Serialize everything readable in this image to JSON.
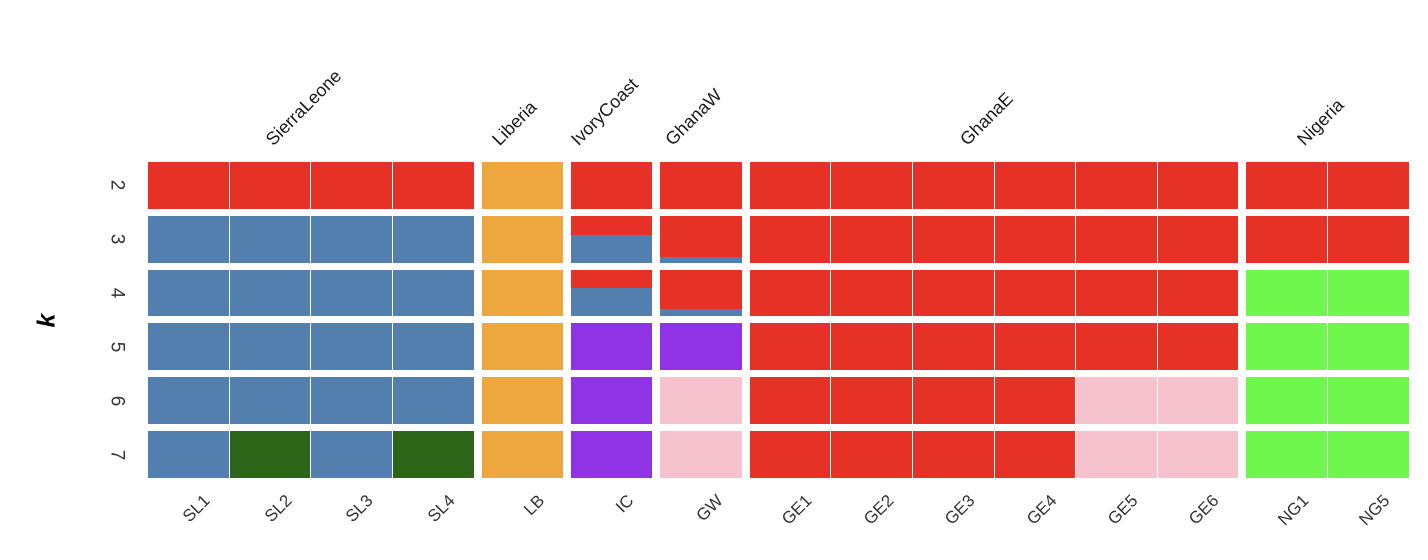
{
  "chart_data": {
    "type": "heatmap",
    "title": "",
    "xlabel": "",
    "ylabel": "k",
    "legend": "none",
    "grid": "off",
    "rows": [
      "2",
      "3",
      "4",
      "5",
      "6",
      "7"
    ],
    "columns": [
      "SL1",
      "SL2",
      "SL3",
      "SL4",
      "LB",
      "IC",
      "GW",
      "GE1",
      "GE2",
      "GE3",
      "GE4",
      "GE5",
      "GE6",
      "NG1",
      "NG5"
    ],
    "groups": [
      {
        "name": "SierraLeone",
        "cols": [
          "SL1",
          "SL2",
          "SL3",
          "SL4"
        ]
      },
      {
        "name": "Liberia",
        "cols": [
          "LB"
        ]
      },
      {
        "name": "IvoryCoast",
        "cols": [
          "IC"
        ]
      },
      {
        "name": "GhanaW",
        "cols": [
          "GW"
        ]
      },
      {
        "name": "GhanaE",
        "cols": [
          "GE1",
          "GE2",
          "GE3",
          "GE4",
          "GE5",
          "GE6"
        ]
      },
      {
        "name": "Nigeria",
        "cols": [
          "NG1",
          "NG5"
        ]
      }
    ],
    "palette": {
      "R": "#e63226",
      "B": "#527fae",
      "O": "#eea73e",
      "P": "#9032e6",
      "K": "#f5c2ce",
      "G": "#70f74e",
      "D": "#2c6418"
    },
    "palette_meaning": {
      "R": "red-cluster",
      "B": "blue-cluster",
      "O": "orange-cluster",
      "P": "purple-cluster",
      "K": "pink-cluster",
      "G": "green-cluster",
      "D": "darkgreen-cluster"
    },
    "cells": [
      [
        [
          [
            "R",
            1
          ]
        ],
        [
          [
            "R",
            1
          ]
        ],
        [
          [
            "R",
            1
          ]
        ],
        [
          [
            "R",
            1
          ]
        ],
        [
          [
            "O",
            1
          ]
        ],
        [
          [
            "R",
            1
          ]
        ],
        [
          [
            "R",
            1
          ]
        ],
        [
          [
            "R",
            1
          ]
        ],
        [
          [
            "R",
            1
          ]
        ],
        [
          [
            "R",
            1
          ]
        ],
        [
          [
            "R",
            1
          ]
        ],
        [
          [
            "R",
            1
          ]
        ],
        [
          [
            "R",
            1
          ]
        ],
        [
          [
            "R",
            1
          ]
        ],
        [
          [
            "R",
            1
          ]
        ]
      ],
      [
        [
          [
            "B",
            1
          ]
        ],
        [
          [
            "B",
            1
          ]
        ],
        [
          [
            "B",
            1
          ]
        ],
        [
          [
            "B",
            1
          ]
        ],
        [
          [
            "O",
            1
          ]
        ],
        [
          [
            "R",
            0.4
          ],
          [
            "B",
            0.6
          ]
        ],
        [
          [
            "R",
            0.87
          ],
          [
            "B",
            0.13
          ]
        ],
        [
          [
            "R",
            1
          ]
        ],
        [
          [
            "R",
            1
          ]
        ],
        [
          [
            "R",
            1
          ]
        ],
        [
          [
            "R",
            1
          ]
        ],
        [
          [
            "R",
            1
          ]
        ],
        [
          [
            "R",
            1
          ]
        ],
        [
          [
            "R",
            1
          ]
        ],
        [
          [
            "R",
            1
          ]
        ]
      ],
      [
        [
          [
            "B",
            1
          ]
        ],
        [
          [
            "B",
            1
          ]
        ],
        [
          [
            "B",
            1
          ]
        ],
        [
          [
            "B",
            1
          ]
        ],
        [
          [
            "O",
            1
          ]
        ],
        [
          [
            "R",
            0.4
          ],
          [
            "B",
            0.6
          ]
        ],
        [
          [
            "R",
            0.85
          ],
          [
            "B",
            0.15
          ]
        ],
        [
          [
            "R",
            1
          ]
        ],
        [
          [
            "R",
            1
          ]
        ],
        [
          [
            "R",
            1
          ]
        ],
        [
          [
            "R",
            1
          ]
        ],
        [
          [
            "R",
            1
          ]
        ],
        [
          [
            "R",
            1
          ]
        ],
        [
          [
            "G",
            1
          ]
        ],
        [
          [
            "G",
            1
          ]
        ]
      ],
      [
        [
          [
            "B",
            1
          ]
        ],
        [
          [
            "B",
            1
          ]
        ],
        [
          [
            "B",
            1
          ]
        ],
        [
          [
            "B",
            1
          ]
        ],
        [
          [
            "O",
            1
          ]
        ],
        [
          [
            "P",
            1
          ]
        ],
        [
          [
            "P",
            1
          ]
        ],
        [
          [
            "R",
            1
          ]
        ],
        [
          [
            "R",
            1
          ]
        ],
        [
          [
            "R",
            1
          ]
        ],
        [
          [
            "R",
            1
          ]
        ],
        [
          [
            "R",
            1
          ]
        ],
        [
          [
            "R",
            1
          ]
        ],
        [
          [
            "G",
            1
          ]
        ],
        [
          [
            "G",
            1
          ]
        ]
      ],
      [
        [
          [
            "B",
            1
          ]
        ],
        [
          [
            "B",
            1
          ]
        ],
        [
          [
            "B",
            1
          ]
        ],
        [
          [
            "B",
            1
          ]
        ],
        [
          [
            "O",
            1
          ]
        ],
        [
          [
            "P",
            1
          ]
        ],
        [
          [
            "K",
            1
          ]
        ],
        [
          [
            "R",
            1
          ]
        ],
        [
          [
            "R",
            1
          ]
        ],
        [
          [
            "R",
            1
          ]
        ],
        [
          [
            "R",
            1
          ]
        ],
        [
          [
            "K",
            1
          ]
        ],
        [
          [
            "K",
            1
          ]
        ],
        [
          [
            "G",
            1
          ]
        ],
        [
          [
            "G",
            1
          ]
        ]
      ],
      [
        [
          [
            "B",
            1
          ]
        ],
        [
          [
            "D",
            1
          ]
        ],
        [
          [
            "B",
            1
          ]
        ],
        [
          [
            "D",
            1
          ]
        ],
        [
          [
            "O",
            1
          ]
        ],
        [
          [
            "P",
            1
          ]
        ],
        [
          [
            "K",
            1
          ]
        ],
        [
          [
            "R",
            1
          ]
        ],
        [
          [
            "R",
            1
          ]
        ],
        [
          [
            "R",
            1
          ]
        ],
        [
          [
            "R",
            1
          ]
        ],
        [
          [
            "K",
            1
          ]
        ],
        [
          [
            "K",
            1
          ]
        ],
        [
          [
            "G",
            1
          ]
        ],
        [
          [
            "G",
            1
          ]
        ]
      ]
    ]
  }
}
